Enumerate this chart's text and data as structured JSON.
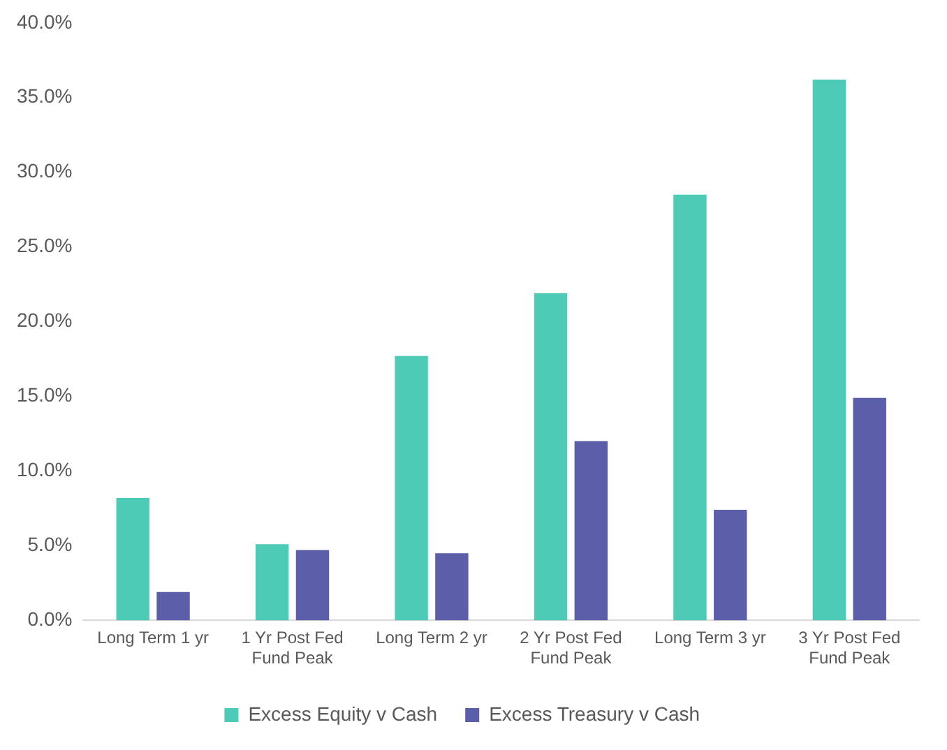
{
  "chart_data": {
    "type": "bar",
    "categories": [
      "Long Term 1 yr",
      "1 Yr Post Fed Fund Peak",
      "Long Term 2 yr",
      "2 Yr Post Fed Fund Peak",
      "Long Term 3 yr",
      "3 Yr Post Fed Fund Peak"
    ],
    "series": [
      {
        "name": "Excess Equity v Cash",
        "color": "#4ecbb6",
        "values": [
          8.2,
          5.1,
          17.7,
          21.9,
          28.5,
          36.2
        ]
      },
      {
        "name": "Excess Treasury v Cash",
        "color": "#5b5ea8",
        "values": [
          1.9,
          4.7,
          4.5,
          12.0,
          7.4,
          14.9
        ]
      }
    ],
    "ylim": [
      0,
      40
    ],
    "yticks": [
      {
        "value": 0,
        "label": "0.0%"
      },
      {
        "value": 5,
        "label": "5.0%"
      },
      {
        "value": 10,
        "label": "10.0%"
      },
      {
        "value": 15,
        "label": "15.0%"
      },
      {
        "value": 20,
        "label": "20.0%"
      },
      {
        "value": 25,
        "label": "25.0%"
      },
      {
        "value": 30,
        "label": "30.0%"
      },
      {
        "value": 35,
        "label": "35.0%"
      },
      {
        "value": 40,
        "label": "40.0%"
      }
    ],
    "grid": false,
    "legend": "bottom"
  }
}
